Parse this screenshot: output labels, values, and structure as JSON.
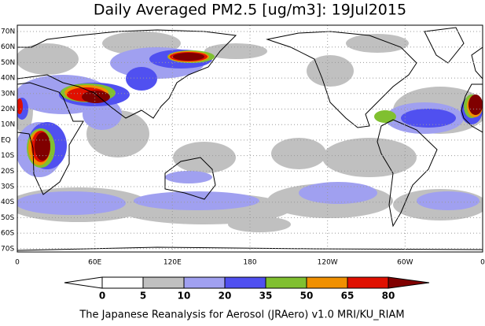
{
  "title": "Daily Averaged PM2.5 [ug/m3]: 19Jul2015",
  "lat_labels": [
    "70N",
    "60N",
    "50N",
    "40N",
    "30N",
    "20N",
    "10N",
    "EQ",
    "10S",
    "20S",
    "30S",
    "40S",
    "50S",
    "60S",
    "70S"
  ],
  "lon_labels": [
    "0",
    "60E",
    "120E",
    "180",
    "120W",
    "60W",
    "0"
  ],
  "colorbar": {
    "ticks": [
      0,
      5,
      10,
      20,
      35,
      50,
      65,
      80
    ],
    "colors": [
      "#ffffff",
      "#ffffff",
      "#c0c0c0",
      "#a0a0f0",
      "#5050f0",
      "#80c030",
      "#f09000",
      "#e01000",
      "#800000"
    ]
  },
  "footer": "The Japanese Reanalysis for Aerosol (JRAero) v1.0 MRI/KU_RIAM"
}
